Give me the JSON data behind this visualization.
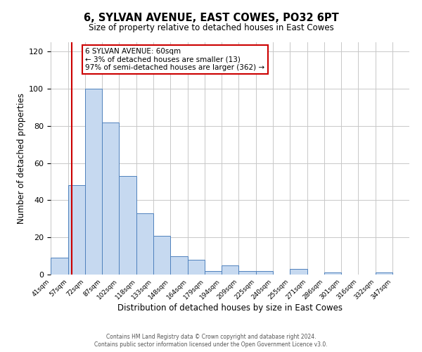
{
  "title": "6, SYLVAN AVENUE, EAST COWES, PO32 6PT",
  "subtitle": "Size of property relative to detached houses in East Cowes",
  "xlabel": "Distribution of detached houses by size in East Cowes",
  "ylabel": "Number of detached properties",
  "footer_line1": "Contains HM Land Registry data © Crown copyright and database right 2024.",
  "footer_line2": "Contains public sector information licensed under the Open Government Licence v3.0.",
  "bin_labels": [
    "41sqm",
    "57sqm",
    "72sqm",
    "87sqm",
    "102sqm",
    "118sqm",
    "133sqm",
    "148sqm",
    "164sqm",
    "179sqm",
    "194sqm",
    "209sqm",
    "225sqm",
    "240sqm",
    "255sqm",
    "271sqm",
    "286sqm",
    "301sqm",
    "316sqm",
    "332sqm",
    "347sqm"
  ],
  "bin_edges": [
    41,
    57,
    72,
    87,
    102,
    118,
    133,
    148,
    164,
    179,
    194,
    209,
    225,
    240,
    255,
    271,
    286,
    301,
    316,
    332,
    347
  ],
  "bar_heights": [
    9,
    48,
    100,
    82,
    53,
    33,
    21,
    10,
    8,
    2,
    5,
    2,
    2,
    0,
    3,
    0,
    1,
    0,
    0,
    1,
    0
  ],
  "bar_color": "#c6d9f0",
  "bar_edge_color": "#4f81bd",
  "property_size": 60,
  "vline_color": "#cc0000",
  "annotation_title": "6 SYLVAN AVENUE: 60sqm",
  "annotation_line2": "← 3% of detached houses are smaller (13)",
  "annotation_line3": "97% of semi-detached houses are larger (362) →",
  "annotation_box_color": "#ffffff",
  "annotation_border_color": "#cc0000",
  "ylim": [
    0,
    125
  ],
  "yticks": [
    0,
    20,
    40,
    60,
    80,
    100,
    120
  ],
  "background_color": "#ffffff",
  "grid_color": "#c8c8c8"
}
